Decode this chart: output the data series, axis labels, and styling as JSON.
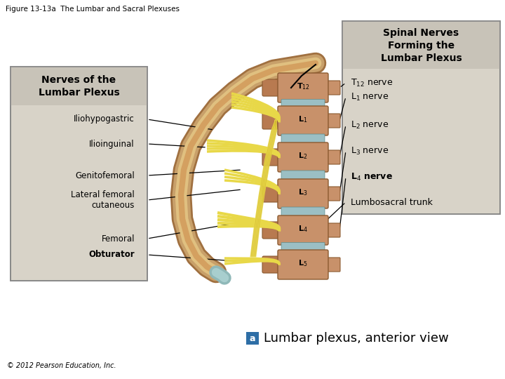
{
  "title": "Figure 13-13a  The Lumbar and Sacral Plexuses",
  "background_color": "#ffffff",
  "fig_width": 7.2,
  "fig_height": 5.4,
  "left_box": {
    "title_line1": "Nerves of the",
    "title_line2": "Lumbar Plexus",
    "nerves": [
      "Iliohypogastric",
      "Ilioinguinal",
      "Genitofemoral",
      "Lateral femoral\ncutaneous",
      "Femoral",
      "Obturator"
    ],
    "nerve_bold": [
      false,
      false,
      false,
      false,
      false,
      true
    ]
  },
  "right_box": {
    "title_line1": "Spinal Nerves",
    "title_line2": "Forming the",
    "title_line3": "Lumbar Plexus",
    "labels": [
      "T$_{12}$ nerve",
      "L$_1$ nerve",
      "L$_2$ nerve",
      "L$_3$ nerve",
      "L$_4$ nerve",
      "Lumbosacral trunk"
    ],
    "label_bold": [
      false,
      false,
      false,
      false,
      true,
      false
    ]
  },
  "spine_labels": [
    "T$_{12}$",
    "L$_1$",
    "L$_2$",
    "L$_3$",
    "L$_4$",
    "L$_5$"
  ],
  "bottom_text": "Lumbar plexus, anterior view",
  "copyright": "© 2012 Pearson Education, Inc.",
  "box_fill_color": "#d8d3c8",
  "box_edge_color": "#888888",
  "spine_body_color": "#c8916a",
  "spine_process_color": "#b87a50",
  "disc_color": "#9bbfc4",
  "nerve_color": "#e8d848",
  "nerve_outline": "#c8a820",
  "bone_outer": "#c8a06a",
  "bone_mid": "#e0c080",
  "bone_inner": "#d4a060",
  "cartilage_color": "#8fb8b8",
  "bottom_box_color": "#2e6ea6"
}
